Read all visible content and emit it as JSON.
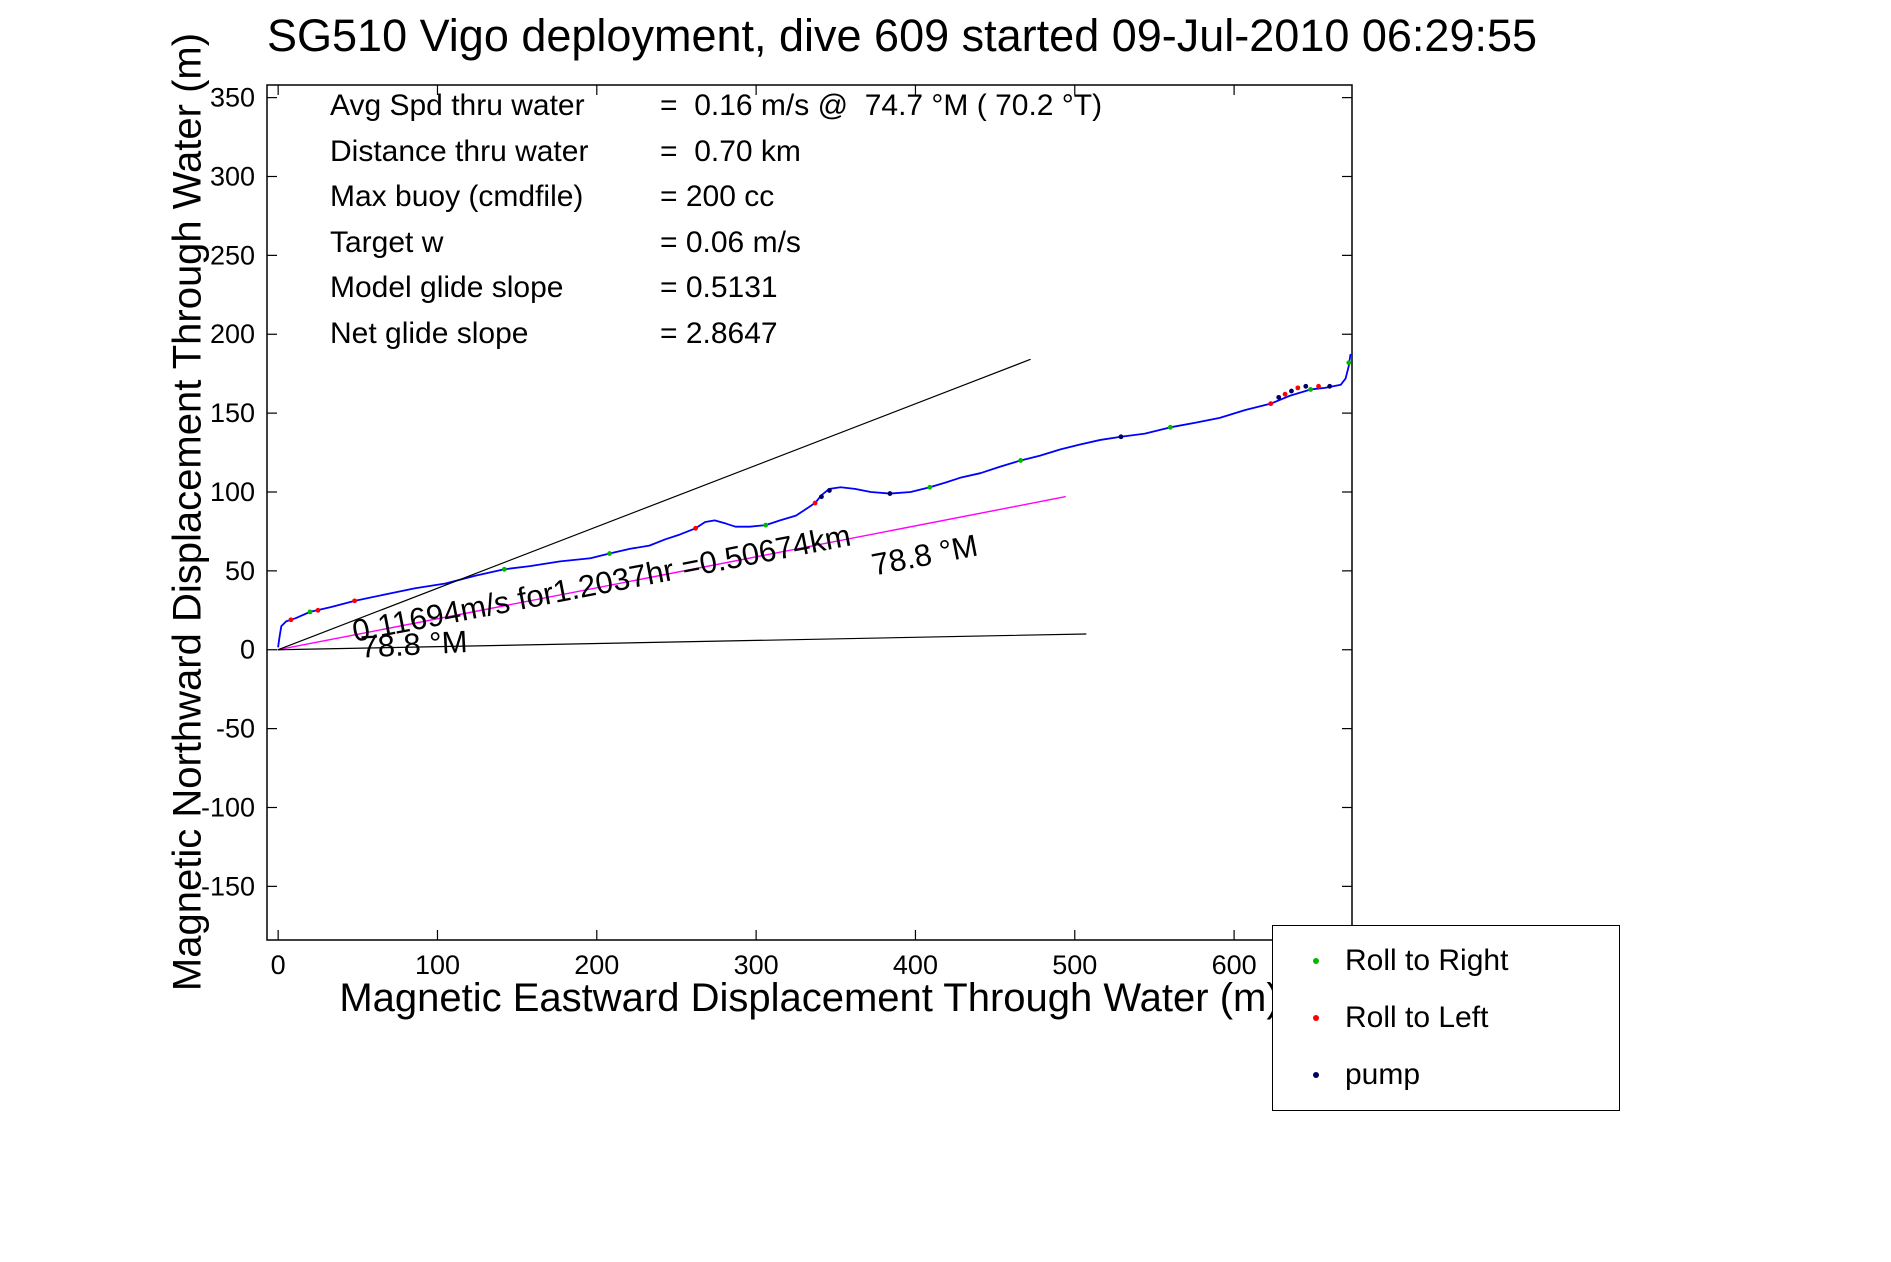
{
  "title": "SG510 Vigo deployment, dive 609 started 09-Jul-2010 06:29:55",
  "stats": {
    "rows": [
      {
        "label": "Avg Spd thru water",
        "value": "=  0.16 m/s @  74.7 °M ( 70.2 °T)"
      },
      {
        "label": "Distance thru water",
        "value": "=  0.70 km"
      },
      {
        "label": "Max buoy (cmdfile)",
        "value": "= 200 cc"
      },
      {
        "label": "Target w",
        "value": "= 0.06 m/s"
      },
      {
        "label": "Model glide slope",
        "value": "= 0.5131"
      },
      {
        "label": "Net glide slope",
        "value": "= 2.8647"
      }
    ]
  },
  "chart_data": {
    "type": "line",
    "title": "SG510 Vigo deployment, dive 609 started 09-Jul-2010 06:29:55",
    "xlabel": "Magnetic Eastward Displacement Through Water (m)",
    "ylabel": "Magnetic Northward Displacement Through Water (m)",
    "xlim": [
      -7,
      674
    ],
    "ylim": [
      -184,
      358
    ],
    "xticks": [
      0,
      100,
      200,
      300,
      400,
      500,
      600
    ],
    "yticks": [
      -150,
      -100,
      -50,
      0,
      50,
      100,
      150,
      200,
      250,
      300,
      350
    ],
    "grid": false,
    "series": [
      {
        "name": "track-through-water",
        "color": "#0000ff",
        "width": 1.8,
        "points": [
          [
            0,
            2
          ],
          [
            1,
            9
          ],
          [
            2,
            15
          ],
          [
            5,
            18
          ],
          [
            11,
            20
          ],
          [
            20,
            24
          ],
          [
            33,
            27
          ],
          [
            48,
            31
          ],
          [
            67,
            35
          ],
          [
            86,
            39
          ],
          [
            105,
            42
          ],
          [
            124,
            47
          ],
          [
            142,
            51
          ],
          [
            158,
            53
          ],
          [
            177,
            56
          ],
          [
            196,
            58
          ],
          [
            208,
            61
          ],
          [
            221,
            64
          ],
          [
            233,
            66
          ],
          [
            243,
            70
          ],
          [
            252,
            73
          ],
          [
            262,
            77
          ],
          [
            268,
            81
          ],
          [
            274,
            82
          ],
          [
            281,
            80
          ],
          [
            287,
            78
          ],
          [
            296,
            78
          ],
          [
            306,
            79
          ],
          [
            315,
            82
          ],
          [
            325,
            85
          ],
          [
            331,
            89
          ],
          [
            337,
            93
          ],
          [
            341,
            98
          ],
          [
            346,
            102
          ],
          [
            353,
            103
          ],
          [
            362,
            102
          ],
          [
            372,
            100
          ],
          [
            384,
            99
          ],
          [
            397,
            100
          ],
          [
            409,
            103
          ],
          [
            419,
            106
          ],
          [
            428,
            109
          ],
          [
            441,
            112
          ],
          [
            453,
            116
          ],
          [
            466,
            120
          ],
          [
            478,
            123
          ],
          [
            491,
            127
          ],
          [
            503,
            130
          ],
          [
            516,
            133
          ],
          [
            529,
            135
          ],
          [
            544,
            137
          ],
          [
            560,
            141
          ],
          [
            576,
            144
          ],
          [
            591,
            147
          ],
          [
            607,
            152
          ],
          [
            623,
            156
          ],
          [
            635,
            161
          ],
          [
            648,
            165
          ],
          [
            657,
            166
          ],
          [
            667,
            168
          ],
          [
            670,
            172
          ],
          [
            672,
            180
          ],
          [
            673,
            187
          ]
        ]
      },
      {
        "name": "avg-speed-vector",
        "color": "#ff00ff",
        "width": 1.4,
        "points": [
          [
            0,
            0
          ],
          [
            494,
            97
          ]
        ]
      },
      {
        "name": "heading-line-upper",
        "color": "#000000",
        "width": 1.2,
        "points": [
          [
            0,
            0
          ],
          [
            472,
            184
          ]
        ]
      },
      {
        "name": "heading-line-lower",
        "color": "#000000",
        "width": 1.2,
        "points": [
          [
            0,
            0
          ],
          [
            507,
            10
          ]
        ]
      }
    ],
    "markers": [
      {
        "name": "roll-right",
        "label": "Roll to Right",
        "color": "#00b800",
        "points": [
          [
            20,
            24
          ],
          [
            142,
            51
          ],
          [
            208,
            61
          ],
          [
            306,
            79
          ],
          [
            409,
            103
          ],
          [
            466,
            120
          ],
          [
            560,
            141
          ],
          [
            648,
            165
          ],
          [
            672,
            182
          ]
        ]
      },
      {
        "name": "roll-left",
        "label": "Roll to Left",
        "color": "#ff0000",
        "points": [
          [
            8,
            19
          ],
          [
            25,
            25
          ],
          [
            48,
            31
          ],
          [
            262,
            77
          ],
          [
            337,
            93
          ],
          [
            623,
            156
          ],
          [
            632,
            162
          ],
          [
            640,
            166
          ],
          [
            653,
            167
          ]
        ]
      },
      {
        "name": "pump",
        "label": "pump",
        "color": "#000060",
        "points": [
          [
            341,
            97
          ],
          [
            346,
            101
          ],
          [
            384,
            99
          ],
          [
            529,
            135
          ],
          [
            628,
            160
          ],
          [
            636,
            164
          ],
          [
            645,
            167
          ],
          [
            660,
            167
          ]
        ]
      }
    ],
    "annotations": [
      {
        "text": "0.11694m/s for1.2037hr =0.50674km",
        "x": 48,
        "y": 5,
        "rotation": -11
      },
      {
        "text": "78.8 °M",
        "x": 374,
        "y": 47,
        "rotation": -11
      },
      {
        "text": "78.8 °M",
        "x": 52,
        "y": -5,
        "rotation": -3
      }
    ],
    "legend": {
      "position": "lower right"
    }
  }
}
